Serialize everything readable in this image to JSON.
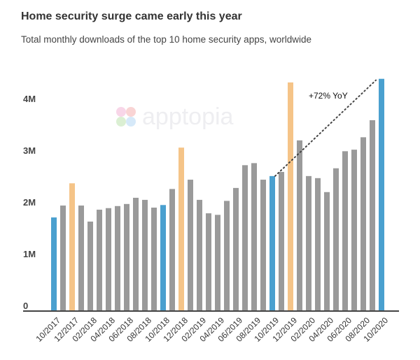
{
  "title": "Home security surge came early this year",
  "subtitle": "Total monthly downloads of the top 10 home security apps, worldwide",
  "watermark": "apptopia",
  "chart_data": {
    "type": "bar",
    "title": "Home security surge came early this year",
    "subtitle": "Total monthly downloads of the top 10 home security apps, worldwide",
    "xlabel": "",
    "ylabel": "",
    "ylim": [
      0,
      4500000
    ],
    "grid": false,
    "y_ticks": [
      {
        "value": 0,
        "label": "0"
      },
      {
        "value": 1000000,
        "label": "1M"
      },
      {
        "value": 2000000,
        "label": "2M"
      },
      {
        "value": 3000000,
        "label": "3M"
      },
      {
        "value": 4000000,
        "label": "4M"
      }
    ],
    "categories": [
      "10/2017",
      "11/2017",
      "12/2017",
      "01/2018",
      "02/2018",
      "03/2018",
      "04/2018",
      "05/2018",
      "06/2018",
      "07/2018",
      "08/2018",
      "09/2018",
      "10/2018",
      "11/2018",
      "12/2018",
      "01/2019",
      "02/2019",
      "03/2019",
      "04/2019",
      "05/2019",
      "06/2019",
      "07/2019",
      "08/2019",
      "09/2019",
      "10/2019",
      "11/2019",
      "12/2019",
      "01/2020",
      "02/2020",
      "03/2020",
      "04/2020",
      "05/2020",
      "06/2020",
      "07/2020",
      "08/2020",
      "09/2020",
      "10/2020"
    ],
    "x_tick_labels": [
      "10/2017",
      "12/2017",
      "02/2018",
      "04/2018",
      "06/2018",
      "08/2018",
      "10/2018",
      "12/2018",
      "02/2019",
      "04/2019",
      "06/2019",
      "08/2019",
      "10/2019",
      "12/2019",
      "02/2020",
      "04/2020",
      "06/2020",
      "08/2020",
      "10/2020"
    ],
    "values": [
      1810000,
      2040000,
      2470000,
      2040000,
      1730000,
      1960000,
      1990000,
      2030000,
      2070000,
      2190000,
      2150000,
      2000000,
      2050000,
      2360000,
      3160000,
      2540000,
      2150000,
      1890000,
      1860000,
      2130000,
      2380000,
      2820000,
      2860000,
      2540000,
      2610000,
      2690000,
      4420000,
      3300000,
      2610000,
      2570000,
      2300000,
      2760000,
      3090000,
      3120000,
      3360000,
      3690000,
      4490000
    ],
    "highlight": {
      "october": "#4aa0cf",
      "december": "#f5c488",
      "default": "#9a9a9a"
    },
    "annotation": {
      "text": "+72% YoY",
      "from": "10/2019",
      "to": "10/2020",
      "style": "dotted"
    }
  }
}
